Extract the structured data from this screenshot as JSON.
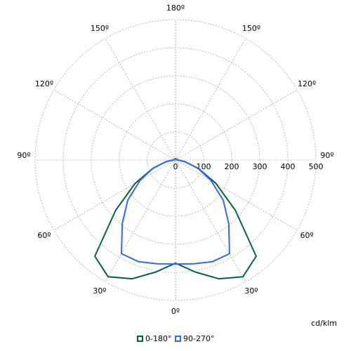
{
  "chart_data": {
    "type": "polar",
    "unit_label": "cd/klm",
    "x": [
      0,
      10,
      20,
      30,
      40,
      50,
      60,
      70,
      80,
      90,
      100,
      110,
      120,
      130,
      140,
      150,
      160,
      170,
      180
    ],
    "series": [
      {
        "name": "0-180°",
        "color": "#006633",
        "values": [
          367,
          405,
          450,
          480,
          447,
          278,
          166,
          86,
          34,
          10,
          6,
          5,
          5,
          5,
          5,
          5,
          5,
          5,
          5
        ]
      },
      {
        "name": "90-270°",
        "color": "#3366ff",
        "values": [
          370,
          375,
          385,
          385,
          295,
          222,
          146,
          85,
          35,
          10,
          6,
          5,
          5,
          5,
          5,
          5,
          5,
          5,
          5
        ]
      }
    ],
    "rlim": [
      0,
      500
    ],
    "rticks": [
      0,
      100,
      200,
      300,
      400,
      500
    ],
    "angle_ticks": [
      {
        "value": 0,
        "label": "0º"
      },
      {
        "value": 30,
        "label": "30º"
      },
      {
        "value": 60,
        "label": "60º"
      },
      {
        "value": 90,
        "label": "90º"
      },
      {
        "value": 120,
        "label": "120º"
      },
      {
        "value": 150,
        "label": "150º"
      },
      {
        "value": 180,
        "label": "180º"
      }
    ],
    "grid": true
  }
}
